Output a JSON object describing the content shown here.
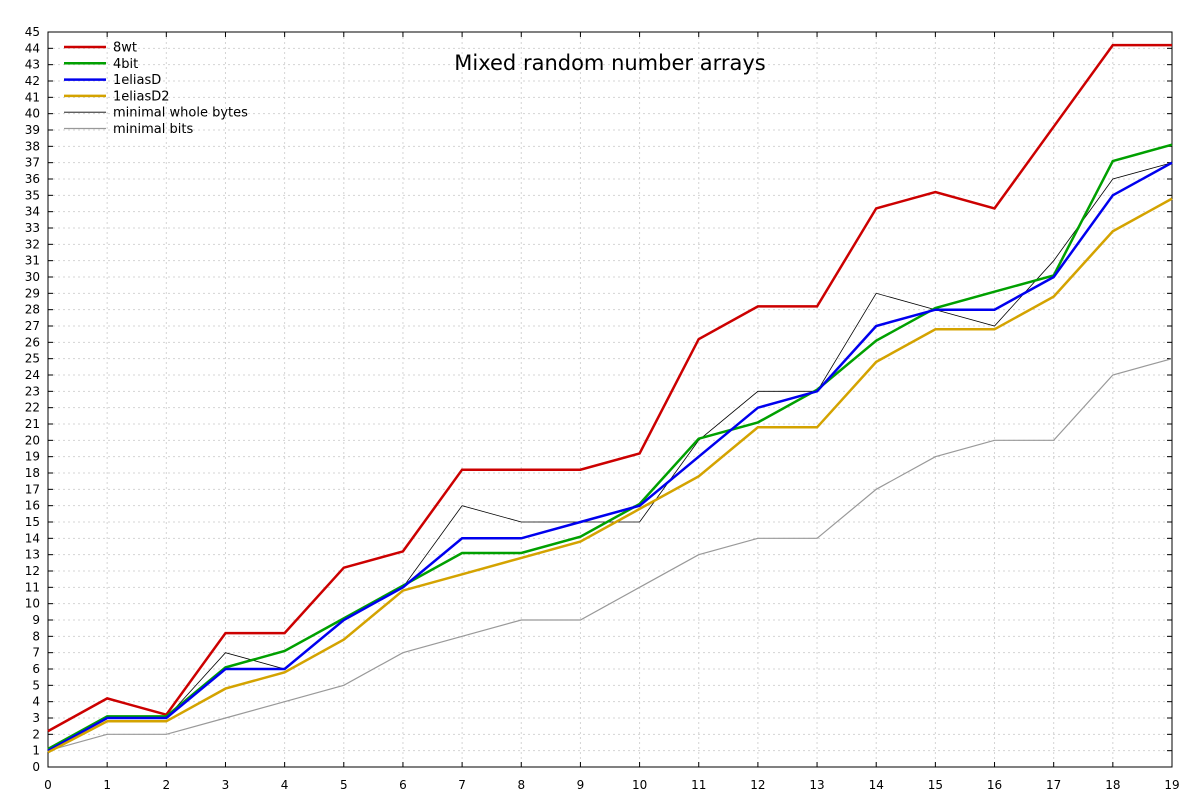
{
  "chart_data": {
    "type": "line",
    "title": "Mixed random number arrays",
    "xlabel": "",
    "ylabel": "",
    "x": [
      0,
      1,
      2,
      3,
      4,
      5,
      6,
      7,
      8,
      9,
      10,
      11,
      12,
      13,
      14,
      15,
      16,
      17,
      18,
      19
    ],
    "xlim": [
      0,
      19
    ],
    "ylim": [
      0,
      45
    ],
    "x_ticks": [
      "0",
      "1",
      "2",
      "3",
      "4",
      "5",
      "6",
      "7",
      "8",
      "9",
      "10",
      "11",
      "12",
      "13",
      "14",
      "15",
      "16",
      "17",
      "18",
      "19"
    ],
    "y_ticks": [
      "0",
      "1",
      "2",
      "3",
      "4",
      "5",
      "6",
      "7",
      "8",
      "9",
      "10",
      "11",
      "12",
      "13",
      "14",
      "15",
      "16",
      "17",
      "18",
      "19",
      "20",
      "21",
      "22",
      "23",
      "24",
      "25",
      "26",
      "27",
      "28",
      "29",
      "30",
      "31",
      "32",
      "33",
      "34",
      "35",
      "36",
      "37",
      "38",
      "39",
      "40",
      "41",
      "42",
      "43",
      "44",
      "45"
    ],
    "grid": true,
    "legend_position": "top-left",
    "series": [
      {
        "name": "8wt",
        "color": "#cc0000",
        "width": 2.5,
        "values": [
          2.2,
          4.2,
          3.2,
          8.2,
          8.2,
          12.2,
          13.2,
          18.2,
          18.2,
          18.2,
          19.2,
          26.2,
          28.2,
          28.2,
          34.2,
          35.2,
          34.2,
          39.2,
          44.2,
          44.2
        ]
      },
      {
        "name": "4bit",
        "color": "#00a000",
        "width": 2.5,
        "values": [
          1.1,
          3.1,
          3.1,
          6.1,
          7.1,
          9.1,
          11.1,
          13.1,
          13.1,
          14.1,
          16.1,
          20.1,
          21.1,
          23.1,
          26.1,
          28.1,
          29.1,
          30.1,
          37.1,
          38.1
        ]
      },
      {
        "name": "1eliasD",
        "color": "#0000ee",
        "width": 2.5,
        "values": [
          1.0,
          3.0,
          3.0,
          6.0,
          6.0,
          9.0,
          11.0,
          14.0,
          14.0,
          15.0,
          16.0,
          19.0,
          22.0,
          23.0,
          27.0,
          28.0,
          28.0,
          30.0,
          35.0,
          37.0
        ]
      },
      {
        "name": "1eliasD2",
        "color": "#d4a300",
        "width": 2.5,
        "values": [
          0.9,
          2.8,
          2.8,
          4.8,
          5.8,
          7.8,
          10.8,
          11.8,
          12.8,
          13.8,
          15.8,
          17.8,
          20.8,
          20.8,
          24.8,
          26.8,
          26.8,
          28.8,
          32.8,
          34.8
        ]
      },
      {
        "name": "minimal whole bytes",
        "color": "#000000",
        "width": 0.8,
        "values": [
          1,
          3,
          3,
          7,
          6,
          9,
          11,
          16,
          15,
          15,
          15,
          20,
          23,
          23,
          29,
          28,
          27,
          31,
          36,
          37
        ]
      },
      {
        "name": "minimal bits",
        "color": "#999999",
        "width": 1.2,
        "values": [
          1,
          2,
          2,
          3,
          4,
          5,
          7,
          8,
          9,
          9,
          11,
          13,
          14,
          14,
          17,
          19,
          20,
          20,
          24,
          25
        ]
      }
    ]
  }
}
